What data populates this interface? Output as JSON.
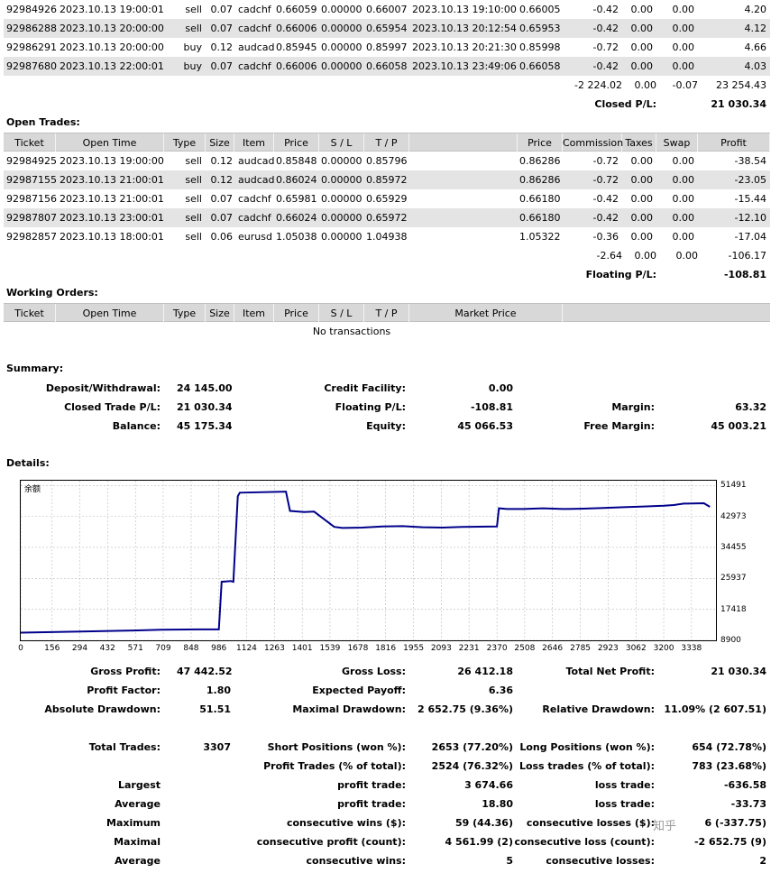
{
  "closed_trades_tail": [
    {
      "ticket": "92984926",
      "open_time": "2023.10.13 19:00:01",
      "type": "sell",
      "size": "0.07",
      "item": "cadchf",
      "price": "0.66059",
      "sl": "0.00000",
      "tp": "0.66007",
      "close_time": "2023.10.13 19:10:00",
      "close_price": "0.66005",
      "commission": "-0.42",
      "taxes": "0.00",
      "swap": "0.00",
      "profit": "4.20"
    },
    {
      "ticket": "92986288",
      "open_time": "2023.10.13 20:00:00",
      "type": "sell",
      "size": "0.07",
      "item": "cadchf",
      "price": "0.66006",
      "sl": "0.00000",
      "tp": "0.65954",
      "close_time": "2023.10.13 20:12:54",
      "close_price": "0.65953",
      "commission": "-0.42",
      "taxes": "0.00",
      "swap": "0.00",
      "profit": "4.12"
    },
    {
      "ticket": "92986291",
      "open_time": "2023.10.13 20:00:00",
      "type": "buy",
      "size": "0.12",
      "item": "audcad",
      "price": "0.85945",
      "sl": "0.00000",
      "tp": "0.85997",
      "close_time": "2023.10.13 20:21:30",
      "close_price": "0.85998",
      "commission": "-0.72",
      "taxes": "0.00",
      "swap": "0.00",
      "profit": "4.66"
    },
    {
      "ticket": "92987680",
      "open_time": "2023.10.13 22:00:01",
      "type": "buy",
      "size": "0.07",
      "item": "cadchf",
      "price": "0.66006",
      "sl": "0.00000",
      "tp": "0.66058",
      "close_time": "2023.10.13 23:49:06",
      "close_price": "0.66058",
      "commission": "-0.42",
      "taxes": "0.00",
      "swap": "0.00",
      "profit": "4.03"
    }
  ],
  "closed_totals": {
    "commission": "-2 224.02",
    "taxes": "0.00",
    "swap": "-0.07",
    "profit": "23 254.43"
  },
  "closed_pl": {
    "label": "Closed P/L:",
    "value": "21 030.34"
  },
  "open_trades": {
    "title": "Open Trades:",
    "headers": {
      "ticket": "Ticket",
      "open_time": "Open Time",
      "type": "Type",
      "size": "Size",
      "item": "Item",
      "price": "Price",
      "sl": "S / L",
      "tp": "T / P",
      "mprice": "Price",
      "commission": "Commission",
      "taxes": "Taxes",
      "swap": "Swap",
      "profit": "Profit"
    },
    "rows": [
      {
        "ticket": "92984925",
        "open_time": "2023.10.13 19:00:00",
        "type": "sell",
        "size": "0.12",
        "item": "audcad",
        "price": "0.85848",
        "sl": "0.00000",
        "tp": "0.85796",
        "mprice": "0.86286",
        "commission": "-0.72",
        "taxes": "0.00",
        "swap": "0.00",
        "profit": "-38.54"
      },
      {
        "ticket": "92987155",
        "open_time": "2023.10.13 21:00:01",
        "type": "sell",
        "size": "0.12",
        "item": "audcad",
        "price": "0.86024",
        "sl": "0.00000",
        "tp": "0.85972",
        "mprice": "0.86286",
        "commission": "-0.72",
        "taxes": "0.00",
        "swap": "0.00",
        "profit": "-23.05"
      },
      {
        "ticket": "92987156",
        "open_time": "2023.10.13 21:00:01",
        "type": "sell",
        "size": "0.07",
        "item": "cadchf",
        "price": "0.65981",
        "sl": "0.00000",
        "tp": "0.65929",
        "mprice": "0.66180",
        "commission": "-0.42",
        "taxes": "0.00",
        "swap": "0.00",
        "profit": "-15.44"
      },
      {
        "ticket": "92987807",
        "open_time": "2023.10.13 23:00:01",
        "type": "sell",
        "size": "0.07",
        "item": "cadchf",
        "price": "0.66024",
        "sl": "0.00000",
        "tp": "0.65972",
        "mprice": "0.66180",
        "commission": "-0.42",
        "taxes": "0.00",
        "swap": "0.00",
        "profit": "-12.10"
      },
      {
        "ticket": "92982857",
        "open_time": "2023.10.13 18:00:01",
        "type": "sell",
        "size": "0.06",
        "item": "eurusd",
        "price": "1.05038",
        "sl": "0.00000",
        "tp": "1.04938",
        "mprice": "1.05322",
        "commission": "-0.36",
        "taxes": "0.00",
        "swap": "0.00",
        "profit": "-17.04"
      }
    ],
    "totals": {
      "commission": "-2.64",
      "taxes": "0.00",
      "swap": "0.00",
      "profit": "-106.17"
    },
    "floating_label": "Floating P/L:",
    "floating_value": "-108.81"
  },
  "working_orders": {
    "title": "Working Orders:",
    "headers": {
      "ticket": "Ticket",
      "open_time": "Open Time",
      "type": "Type",
      "size": "Size",
      "item": "Item",
      "price": "Price",
      "sl": "S / L",
      "tp": "T / P",
      "market_price": "Market Price"
    },
    "empty": "No transactions"
  },
  "summary": {
    "title": "Summary:",
    "deposit_label": "Deposit/Withdrawal:",
    "deposit": "24 145.00",
    "credit_label": "Credit Facility:",
    "credit": "0.00",
    "closed_label": "Closed Trade P/L:",
    "closed": "21 030.34",
    "floating_label": "Floating P/L:",
    "floating": "-108.81",
    "margin_label": "Margin:",
    "margin": "63.32",
    "balance_label": "Balance:",
    "balance": "45 175.34",
    "equity_label": "Equity:",
    "equity": "45 066.53",
    "free_margin_label": "Free Margin:",
    "free_margin": "45 003.21"
  },
  "details": {
    "title": "Details:"
  },
  "chart_data": {
    "type": "line",
    "title": "余额",
    "line_color": "#00008b",
    "x_ticks": [
      0,
      156,
      294,
      432,
      571,
      709,
      848,
      986,
      1124,
      1263,
      1401,
      1539,
      1678,
      1816,
      1955,
      2093,
      2231,
      2370,
      2508,
      2646,
      2785,
      2923,
      3062,
      3200,
      3338
    ],
    "y_ticks": [
      8900,
      17418,
      25937,
      34455,
      42973,
      51491
    ],
    "xlim": [
      0,
      3460
    ],
    "ylim": [
      8900,
      52800
    ],
    "x": [
      0,
      300,
      560,
      700,
      880,
      986,
      1000,
      1045,
      1058,
      1080,
      1090,
      1320,
      1340,
      1410,
      1460,
      1560,
      1600,
      1700,
      1800,
      1900,
      2000,
      2100,
      2200,
      2370,
      2380,
      2420,
      2500,
      2600,
      2700,
      2800,
      2900,
      3000,
      3100,
      3200,
      3250,
      3300,
      3400,
      3430
    ],
    "y": [
      11000,
      11300,
      11600,
      11800,
      11900,
      11900,
      25000,
      25200,
      25000,
      48500,
      49500,
      49800,
      44500,
      44200,
      44300,
      40100,
      39800,
      39900,
      40200,
      40300,
      40000,
      39900,
      40100,
      40200,
      45200,
      45000,
      45000,
      45200,
      45000,
      45100,
      45300,
      45500,
      45700,
      45900,
      46100,
      46500,
      46600,
      45600
    ]
  },
  "stats": {
    "gross_profit_label": "Gross Profit:",
    "gross_profit": "47 442.52",
    "gross_loss_label": "Gross Loss:",
    "gross_loss": "26 412.18",
    "net_profit_label": "Total Net Profit:",
    "net_profit": "21 030.34",
    "profit_factor_label": "Profit Factor:",
    "profit_factor": "1.80",
    "expected_payoff_label": "Expected Payoff:",
    "expected_payoff": "6.36",
    "abs_dd_label": "Absolute Drawdown:",
    "abs_dd": "51.51",
    "max_dd_label": "Maximal Drawdown:",
    "max_dd": "2 652.75 (9.36%)",
    "rel_dd_label": "Relative Drawdown:",
    "rel_dd": "11.09% (2 607.51)",
    "total_trades_label": "Total Trades:",
    "total_trades": "3307",
    "short_label": "Short Positions (won %):",
    "short": "2653 (77.20%)",
    "long_label": "Long Positions (won %):",
    "long": "654 (72.78%)",
    "profit_trades_label": "Profit Trades (% of total):",
    "profit_trades": "2524 (76.32%)",
    "loss_trades_label": "Loss trades (% of total):",
    "loss_trades": "783 (23.68%)",
    "largest": "Largest",
    "largest_pt_label": "profit trade:",
    "largest_pt": "3 674.66",
    "largest_lt_label": "loss trade:",
    "largest_lt": "-636.58",
    "average": "Average",
    "average_pt_label": "profit trade:",
    "average_pt": "18.80",
    "average_lt_label": "loss trade:",
    "average_lt": "-33.73",
    "maximum": "Maximum",
    "max_cw_label": "consecutive wins ($):",
    "max_cw": "59 (44.36)",
    "max_cl_label": "consecutive losses ($):",
    "max_cl": "6 (-337.75)",
    "maximal": "Maximal",
    "maxl_cp_label": "consecutive profit (count):",
    "maxl_cp": "4 561.99 (2)",
    "maxl_cl_label": "consecutive loss (count):",
    "maxl_cl": "-2 652.75 (9)",
    "average2": "Average",
    "avg_cw_label": "consecutive wins:",
    "avg_cw": "5",
    "avg_cl_label": "consecutive losses:",
    "avg_cl": "2"
  },
  "watermark": "知乎"
}
